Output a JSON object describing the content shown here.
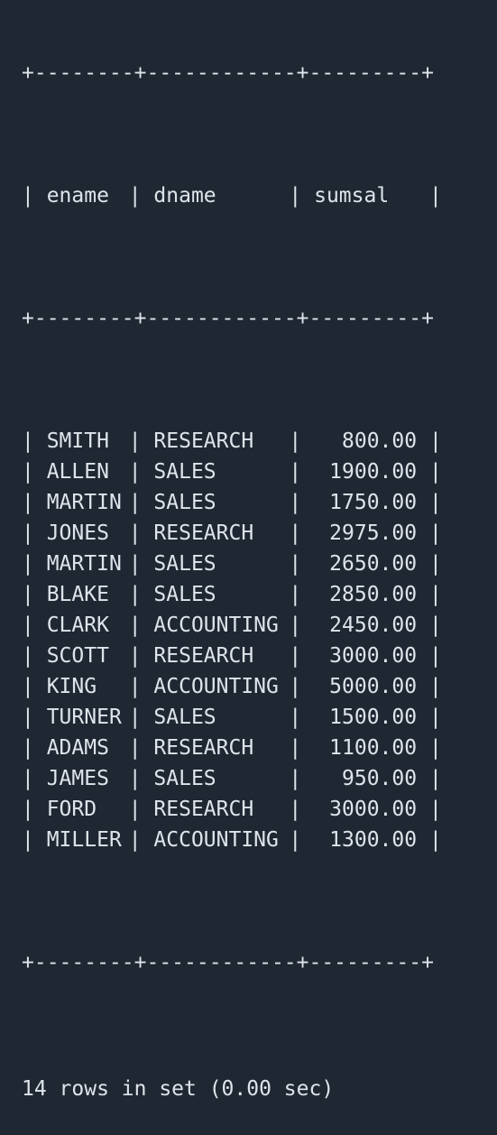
{
  "table": {
    "border_line": "+--------+------------+---------+",
    "headers": [
      "ename",
      "dname",
      "sumsal"
    ],
    "rows": [
      [
        "SMITH",
        "RESEARCH",
        "800.00"
      ],
      [
        "ALLEN",
        "SALES",
        "1900.00"
      ],
      [
        "MARTIN",
        "SALES",
        "1750.00"
      ],
      [
        "JONES",
        "RESEARCH",
        "2975.00"
      ],
      [
        "MARTIN",
        "SALES",
        "2650.00"
      ],
      [
        "BLAKE",
        "SALES",
        "2850.00"
      ],
      [
        "CLARK",
        "ACCOUNTING",
        "2450.00"
      ],
      [
        "SCOTT",
        "RESEARCH",
        "3000.00"
      ],
      [
        "KING",
        "ACCOUNTING",
        "5000.00"
      ],
      [
        "TURNER",
        "SALES",
        "1500.00"
      ],
      [
        "ADAMS",
        "RESEARCH",
        "1100.00"
      ],
      [
        "JAMES",
        "SALES",
        "950.00"
      ],
      [
        "FORD",
        "RESEARCH",
        "3000.00"
      ],
      [
        "MILLER",
        "ACCOUNTING",
        "1300.00"
      ]
    ]
  },
  "footer": "14 rows in set (0.00 sec)",
  "colors": {
    "background": "#1f2733",
    "text": "#dfe4ea"
  }
}
